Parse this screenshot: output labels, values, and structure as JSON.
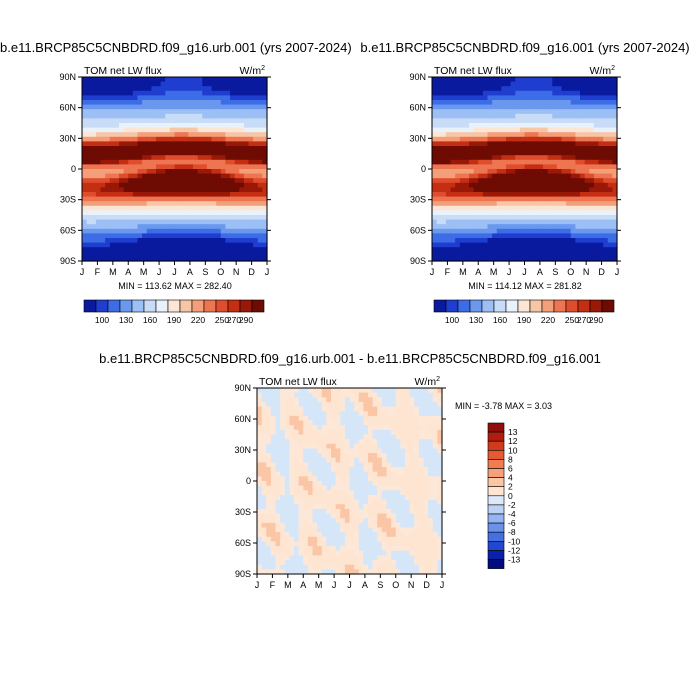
{
  "panels": [
    {
      "title": "b.e11.BRCP85C5CNBDRD.f09_g16.urb.001 (yrs 2007-2024)",
      "variable": "TOM net LW flux",
      "units": "W/m",
      "units_sup": "2",
      "minmax": "MIN = 113.62 MAX = 282.40"
    },
    {
      "title": "b.e11.BRCP85C5CNBDRD.f09_g16.001 (yrs 2007-2024)",
      "variable": "TOM net LW flux",
      "units": "W/m",
      "units_sup": "2",
      "minmax": "MIN = 114.12 MAX = 281.82"
    },
    {
      "title": "b.e11.BRCP85C5CNBDRD.f09_g16.urb.001 - b.e11.BRCP85C5CNBDRD.f09_g16.001",
      "variable": "TOM net LW flux",
      "units": "W/m",
      "units_sup": "2",
      "minmax": "MIN =  -3.78 MAX =  3.03"
    }
  ],
  "chart_data": [
    {
      "type": "heatmap",
      "title": "b.e11.BRCP85C5CNBDRD.f09_g16.urb.001 (yrs 2007-2024)",
      "x": [
        "J",
        "F",
        "M",
        "A",
        "M",
        "J",
        "J",
        "A",
        "S",
        "O",
        "N",
        "D",
        "J"
      ],
      "y_ticks": [
        "90N",
        "60N",
        "30N",
        "0",
        "30S",
        "60S",
        "90S"
      ],
      "ylim": [
        -90,
        90
      ],
      "min": 113.62,
      "max": 282.4,
      "colorbar_labels": [
        "100",
        "130",
        "160",
        "190",
        "220",
        "250",
        "270",
        "290"
      ],
      "colorbar_colors": [
        "#0a1a9e",
        "#1f3ed0",
        "#3c6ce6",
        "#6a98ef",
        "#9cc0f5",
        "#c8dcf8",
        "#e9f1fb",
        "#fbe6d6",
        "#f7c6a6",
        "#f3a07a",
        "#ee7551",
        "#e04d2d",
        "#c42e12",
        "#9a1808",
        "#6e0b03"
      ]
    },
    {
      "type": "heatmap",
      "title": "b.e11.BRCP85C5CNBDRD.f09_g16.001 (yrs 2007-2024)",
      "x": [
        "J",
        "F",
        "M",
        "A",
        "M",
        "J",
        "J",
        "A",
        "S",
        "O",
        "N",
        "D",
        "J"
      ],
      "y_ticks": [
        "90N",
        "60N",
        "30N",
        "0",
        "30S",
        "60S",
        "90S"
      ],
      "ylim": [
        -90,
        90
      ],
      "min": 114.12,
      "max": 281.82,
      "colorbar_labels": [
        "100",
        "130",
        "160",
        "190",
        "220",
        "250",
        "270",
        "290"
      ],
      "colorbar_colors": [
        "#0a1a9e",
        "#1f3ed0",
        "#3c6ce6",
        "#6a98ef",
        "#9cc0f5",
        "#c8dcf8",
        "#e9f1fb",
        "#fbe6d6",
        "#f7c6a6",
        "#f3a07a",
        "#ee7551",
        "#e04d2d",
        "#c42e12",
        "#9a1808",
        "#6e0b03"
      ]
    },
    {
      "type": "heatmap",
      "title": "b.e11.BRCP85C5CNBDRD.f09_g16.urb.001 - b.e11.BRCP85C5CNBDRD.f09_g16.001",
      "x": [
        "J",
        "F",
        "M",
        "A",
        "M",
        "J",
        "J",
        "A",
        "S",
        "O",
        "N",
        "D",
        "J"
      ],
      "y_ticks": [
        "90N",
        "60N",
        "30N",
        "0",
        "30S",
        "60S",
        "90S"
      ],
      "ylim": [
        -90,
        90
      ],
      "min": -3.78,
      "max": 3.03,
      "colorbar_labels": [
        "13",
        "12",
        "10",
        "8",
        "6",
        "4",
        "2",
        "0",
        "-2",
        "-4",
        "-6",
        "-8",
        "-10",
        "-12",
        "-13"
      ],
      "colorbar_colors": [
        "#8f0f0a",
        "#b31d10",
        "#d23a1c",
        "#e65a32",
        "#f07c52",
        "#f6a17a",
        "#fac6a6",
        "#fde5d2",
        "#dce9fa",
        "#bcd3f6",
        "#93b4f0",
        "#6b92ea",
        "#4470e2",
        "#2148d0",
        "#0a22a8",
        "#000c80"
      ]
    }
  ]
}
